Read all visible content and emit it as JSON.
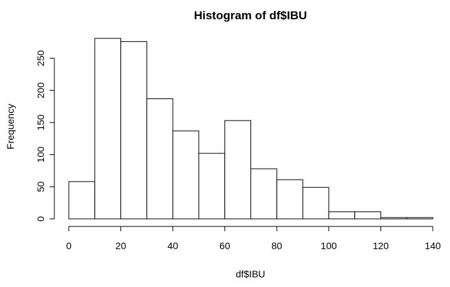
{
  "chart_data": {
    "type": "bar",
    "subtype": "histogram",
    "title": "Histogram of df$IBU",
    "xlabel": "df$IBU",
    "ylabel": "Frequency",
    "bins": [
      {
        "start": 0,
        "end": 10,
        "count": 58
      },
      {
        "start": 10,
        "end": 20,
        "count": 281
      },
      {
        "start": 20,
        "end": 30,
        "count": 276
      },
      {
        "start": 30,
        "end": 40,
        "count": 187
      },
      {
        "start": 40,
        "end": 50,
        "count": 137
      },
      {
        "start": 50,
        "end": 60,
        "count": 102
      },
      {
        "start": 60,
        "end": 70,
        "count": 153
      },
      {
        "start": 70,
        "end": 80,
        "count": 78
      },
      {
        "start": 80,
        "end": 90,
        "count": 61
      },
      {
        "start": 90,
        "end": 100,
        "count": 49
      },
      {
        "start": 100,
        "end": 110,
        "count": 11
      },
      {
        "start": 110,
        "end": 120,
        "count": 11
      },
      {
        "start": 120,
        "end": 130,
        "count": 2
      },
      {
        "start": 130,
        "end": 140,
        "count": 2
      }
    ],
    "xlim": [
      0,
      140
    ],
    "ylim": [
      0,
      285
    ],
    "xticks": [
      0,
      20,
      40,
      60,
      80,
      100,
      120,
      140
    ],
    "yticks": [
      0,
      50,
      100,
      150,
      200,
      250
    ],
    "bar_fill": "#ffffff",
    "bar_stroke": "#000000",
    "grid": false,
    "legend": "none"
  }
}
